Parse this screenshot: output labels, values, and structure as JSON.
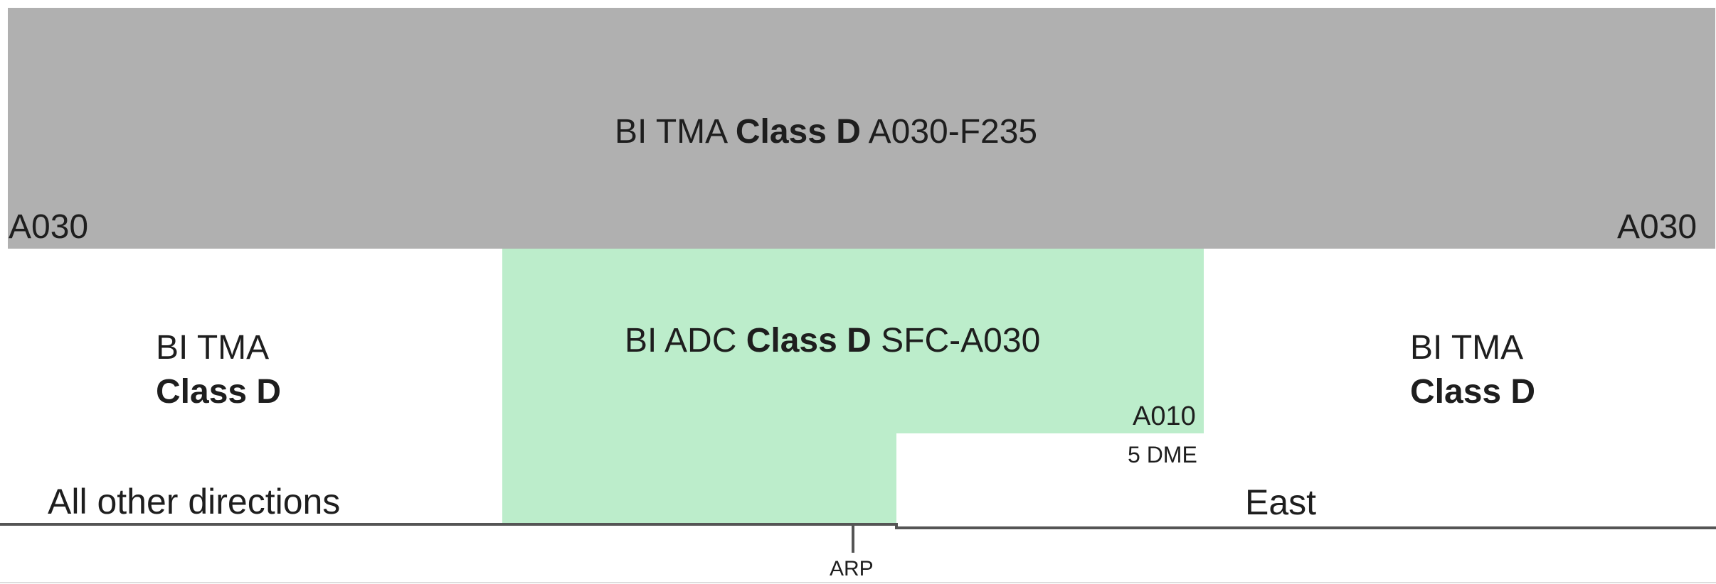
{
  "upper": {
    "name": "BI TMA",
    "class": "Class D",
    "limits": "A030-F235",
    "left_base": "A030",
    "right_base": "A030"
  },
  "adc": {
    "name": "BI ADC",
    "class": "Class D",
    "limits": "SFC-A030",
    "step_altitude": "A010",
    "step_distance": "5 DME"
  },
  "left_sector": {
    "name": "BI TMA",
    "class": "Class D",
    "direction": "All other directions"
  },
  "right_sector": {
    "name": "BI TMA",
    "class": "Class D",
    "direction": "East"
  },
  "ground": {
    "reference": "ARP"
  },
  "colors": {
    "tma_fill": "#b0b0b0",
    "adc_fill": "#bcedcb",
    "ground_line": "#555555",
    "text": "#1e1e1e"
  }
}
